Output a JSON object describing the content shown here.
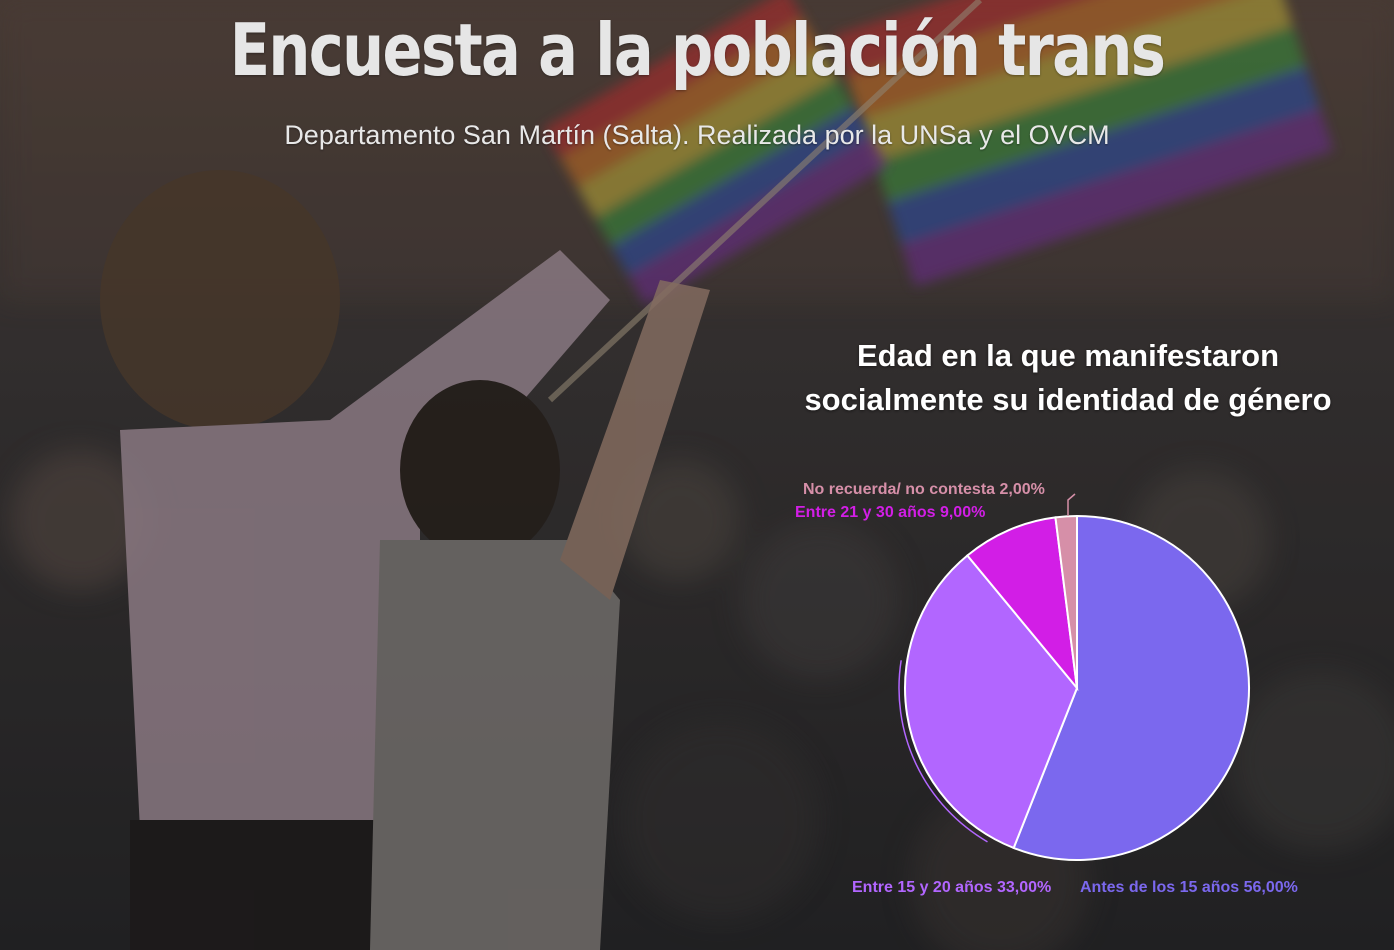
{
  "header": {
    "title": "Encuesta a la población trans",
    "subtitle": "Departamento San Martín (Salta). Realizada por la UNSa y el OVCM"
  },
  "chart_data": {
    "type": "pie",
    "title_lines": [
      "Edad en la que manifestaron",
      "socialmente su identidad de género"
    ],
    "slices": [
      {
        "label": "Antes de los 15 años",
        "value": 56.0,
        "display": "56,00%",
        "color": "#7b68ee"
      },
      {
        "label": "Entre 15 y 20 años",
        "value": 33.0,
        "display": "33,00%",
        "color": "#b266ff"
      },
      {
        "label": "Entre 21 y 30 años",
        "value": 9.0,
        "display": "9,00%",
        "color": "#d21ee6"
      },
      {
        "label": "No recuerda/ no contesta",
        "value": 2.0,
        "display": "2,00%",
        "color": "#d68fa8"
      }
    ]
  }
}
